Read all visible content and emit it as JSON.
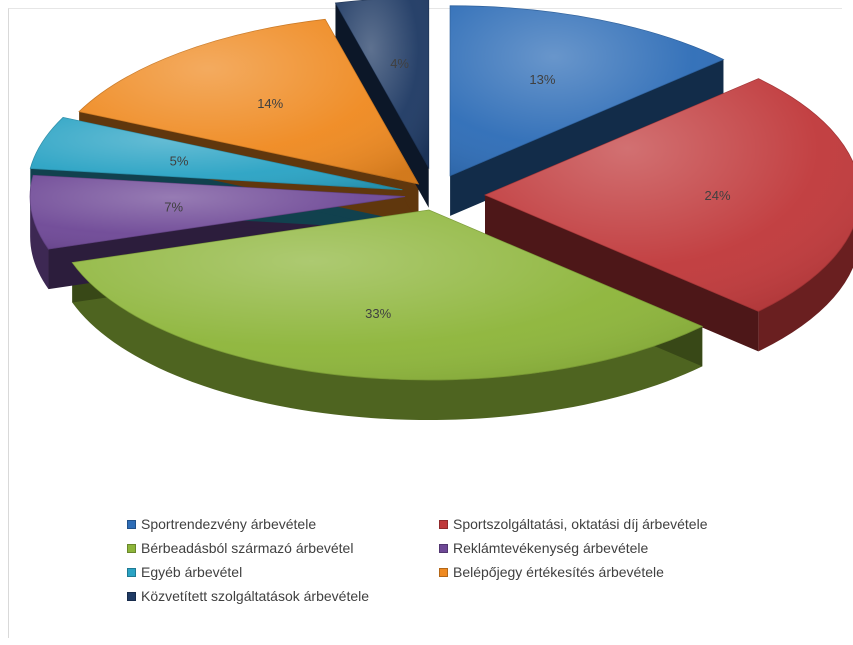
{
  "chart_data": {
    "type": "pie",
    "style": "3d-exploded",
    "title": "",
    "legend_position": "bottom",
    "labels": [
      "Sportrendezvény árbevétele",
      "Sportszolgáltatási, oktatási díj árbevétele",
      "Bérbeadásból származó árbevétel",
      "Reklámtevékenység árbevétele",
      "Egyéb árbevétel",
      "Belépőjegy értékesítés árbevétele",
      "Közvetített szolgáltatások árbevétele"
    ],
    "values": [
      13,
      24,
      33,
      7,
      5,
      14,
      4
    ],
    "data_labels": [
      "13%",
      "24%",
      "33%",
      "7%",
      "5%",
      "14%",
      "4%"
    ],
    "colors": [
      "#2e6db7",
      "#c0393b",
      "#8db53a",
      "#6e4896",
      "#2aa3c4",
      "#ef8a21",
      "#1f3a64"
    ]
  }
}
